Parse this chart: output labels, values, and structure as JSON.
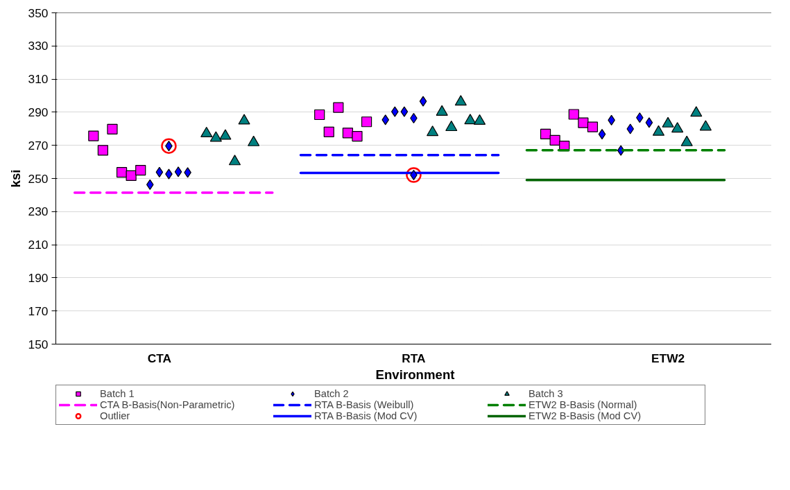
{
  "chart_data": {
    "type": "scatter",
    "xlabel": "Environment",
    "ylabel": "ksi",
    "categories": [
      null,
      null,
      null,
      null,
      null,
      null,
      null,
      null,
      null,
      "CTA",
      null,
      null,
      null,
      null,
      null,
      null,
      null,
      null,
      null,
      null,
      null,
      null,
      null,
      null,
      null,
      null,
      null,
      null,
      null,
      null,
      null,
      null,
      null,
      null,
      null,
      null,
      "RTA",
      null,
      null,
      null,
      null,
      null,
      null,
      null,
      null,
      null,
      null,
      null,
      null,
      null,
      null,
      null,
      null,
      null,
      null,
      null,
      null,
      null,
      null,
      null,
      null,
      null,
      null,
      "ETW2",
      null,
      null,
      null,
      null,
      null,
      null
    ],
    "ylim": [
      150,
      350
    ],
    "yticks": [
      150,
      170,
      190,
      210,
      230,
      250,
      270,
      290,
      310,
      330,
      350
    ],
    "grid": "y",
    "legend": "bottom",
    "series": [
      {
        "name": "Batch 1",
        "marker": "square",
        "color": "#ff00ff",
        "values": [
          null,
          null,
          275.7,
          267,
          279.8,
          253.7,
          251.7,
          255,
          null,
          null,
          null,
          null,
          null,
          null,
          null,
          null,
          null,
          null,
          null,
          null,
          null,
          null,
          null,
          null,
          null,
          null,
          288.5,
          278.1,
          292.8,
          277.5,
          275.5,
          284.2,
          null,
          null,
          null,
          null,
          null,
          null,
          null,
          null,
          null,
          null,
          null,
          null,
          null,
          null,
          null,
          null,
          null,
          null,
          276.8,
          273.1,
          269.6,
          288.7,
          283.6,
          281.1,
          null,
          null,
          null,
          null,
          null,
          null,
          null,
          null,
          null,
          null,
          null,
          null,
          null,
          null
        ]
      },
      {
        "name": "Batch 2",
        "marker": "diamond",
        "color": "#0000ff",
        "values": [
          null,
          null,
          null,
          null,
          null,
          null,
          null,
          null,
          246.3,
          253.8,
          252.7,
          254,
          253.6,
          null,
          null,
          null,
          null,
          null,
          null,
          null,
          null,
          null,
          null,
          null,
          null,
          null,
          null,
          null,
          null,
          null,
          null,
          null,
          null,
          285.4,
          290.3,
          290.3,
          286.4,
          296.6,
          null,
          null,
          null,
          null,
          null,
          null,
          null,
          null,
          null,
          null,
          null,
          null,
          null,
          null,
          null,
          null,
          null,
          null,
          276.7,
          285.2,
          266.9,
          279.9,
          286.7,
          283.7,
          null,
          null,
          null,
          null,
          null,
          null,
          null,
          null
        ]
      },
      {
        "name": "Batch 3",
        "marker": "triangle",
        "color": "#008080",
        "values": [
          null,
          null,
          null,
          null,
          null,
          null,
          null,
          null,
          null,
          null,
          null,
          null,
          null,
          null,
          277.1,
          274.4,
          275.6,
          260.2,
          284.8,
          271.7,
          null,
          null,
          null,
          null,
          null,
          null,
          null,
          null,
          null,
          null,
          null,
          null,
          null,
          null,
          null,
          null,
          null,
          null,
          277.8,
          290.1,
          280.8,
          296.2,
          284.9,
          284.6,
          null,
          null,
          null,
          null,
          null,
          null,
          null,
          null,
          null,
          null,
          null,
          null,
          null,
          null,
          null,
          null,
          null,
          null,
          278,
          283,
          279.9,
          271.7,
          289.5,
          281.1,
          null,
          null
        ]
      },
      {
        "name": "CTA B-Basis(Non-Parametric)",
        "type": "line",
        "line_style": "dashed",
        "color": "#ff00ff",
        "values": [
          241.4,
          241.4,
          241.4,
          241.4,
          241.4,
          241.4,
          241.4,
          241.4,
          241.4,
          241.4,
          241.4,
          241.4,
          241.4,
          241.4,
          241.4,
          241.4,
          241.4,
          241.4,
          241.4,
          241.4,
          241.4,
          241.4,
          null,
          null,
          null,
          null,
          null,
          null,
          null,
          null,
          null,
          null,
          null,
          null,
          null,
          null,
          null,
          null,
          null,
          null,
          null,
          null,
          null,
          null,
          null,
          null,
          null,
          null,
          null,
          null,
          null,
          null,
          null,
          null,
          null,
          null,
          null,
          null,
          null,
          null,
          null,
          null,
          null,
          null,
          null,
          null,
          null,
          null,
          null,
          null
        ]
      },
      {
        "name": "RTA B-Basis (Weibull)",
        "type": "line",
        "line_style": "dashed",
        "color": "#0000ff",
        "values": [
          null,
          null,
          null,
          null,
          null,
          null,
          null,
          null,
          null,
          null,
          null,
          null,
          null,
          null,
          null,
          null,
          null,
          null,
          null,
          null,
          null,
          null,
          null,
          null,
          264.1,
          264.1,
          264.1,
          264.1,
          264.1,
          264.1,
          264.1,
          264.1,
          264.1,
          264.1,
          264.1,
          264.1,
          264.1,
          264.1,
          264.1,
          264.1,
          264.1,
          264.1,
          264.1,
          264.1,
          264.1,
          264.1,
          null,
          null,
          null,
          null,
          null,
          null,
          null,
          null,
          null,
          null,
          null,
          null,
          null,
          null,
          null,
          null,
          null,
          null,
          null,
          null,
          null,
          null,
          null,
          null
        ]
      },
      {
        "name": "ETW2 B-Basis (Normal)",
        "type": "line",
        "line_style": "dashed",
        "color": "#008000",
        "values": [
          null,
          null,
          null,
          null,
          null,
          null,
          null,
          null,
          null,
          null,
          null,
          null,
          null,
          null,
          null,
          null,
          null,
          null,
          null,
          null,
          null,
          null,
          null,
          null,
          null,
          null,
          null,
          null,
          null,
          null,
          null,
          null,
          null,
          null,
          null,
          null,
          null,
          null,
          null,
          null,
          null,
          null,
          null,
          null,
          null,
          null,
          null,
          null,
          267.1,
          267.1,
          267.1,
          267.1,
          267.1,
          267.1,
          267.1,
          267.1,
          267.1,
          267.1,
          267.1,
          267.1,
          267.1,
          267.1,
          267.1,
          267.1,
          267.1,
          267.1,
          267.1,
          267.1,
          267.1,
          267.1
        ]
      },
      {
        "name": "Outlier",
        "marker": "circle",
        "color": "#ff0000",
        "values": [
          null,
          null,
          null,
          null,
          null,
          null,
          null,
          null,
          null,
          null,
          269.6,
          null,
          null,
          null,
          null,
          null,
          null,
          null,
          null,
          null,
          null,
          null,
          null,
          null,
          null,
          null,
          null,
          null,
          null,
          null,
          null,
          null,
          null,
          null,
          null,
          null,
          252.1,
          null,
          null,
          null,
          null,
          null,
          null,
          null,
          null,
          null,
          null,
          null,
          null,
          null,
          null,
          null,
          null,
          null,
          null,
          null,
          null,
          null,
          null,
          null,
          null,
          null,
          null,
          null,
          null,
          null,
          null,
          null,
          null,
          null
        ]
      },
      {
        "name": "RTA B-Basis (Mod CV)",
        "type": "line",
        "line_style": "solid",
        "color": "#0000ff",
        "values": [
          null,
          null,
          null,
          null,
          null,
          null,
          null,
          null,
          null,
          null,
          null,
          null,
          null,
          null,
          null,
          null,
          null,
          null,
          null,
          null,
          null,
          null,
          null,
          null,
          253.3,
          253.3,
          253.3,
          253.3,
          253.3,
          253.3,
          253.3,
          253.3,
          253.3,
          253.3,
          253.3,
          253.3,
          253.3,
          253.3,
          253.3,
          253.3,
          253.3,
          253.3,
          253.3,
          253.3,
          253.3,
          253.3,
          null,
          null,
          null,
          null,
          null,
          null,
          null,
          null,
          null,
          null,
          null,
          null,
          null,
          null,
          null,
          null,
          null,
          null,
          null,
          null,
          null,
          null,
          null,
          null
        ]
      },
      {
        "name": "ETW2 B-Basis (Mod CV)",
        "type": "line",
        "line_style": "solid",
        "color": "#006400",
        "values": [
          null,
          null,
          null,
          null,
          null,
          null,
          null,
          null,
          null,
          null,
          null,
          null,
          null,
          null,
          null,
          null,
          null,
          null,
          null,
          null,
          null,
          null,
          null,
          null,
          null,
          null,
          null,
          null,
          null,
          null,
          null,
          null,
          null,
          null,
          null,
          null,
          null,
          null,
          null,
          null,
          null,
          null,
          null,
          null,
          null,
          null,
          null,
          null,
          249.1,
          249.1,
          249.1,
          249.1,
          249.1,
          249.1,
          249.1,
          249.1,
          249.1,
          249.1,
          249.1,
          249.1,
          249.1,
          249.1,
          249.1,
          249.1,
          249.1,
          249.1,
          249.1,
          249.1,
          249.1,
          249.1
        ]
      },
      {
        "marker": "diamond",
        "color": "#0000ff",
        "values": [
          null,
          null,
          null,
          null,
          null,
          null,
          null,
          null,
          null,
          null,
          269.6,
          null,
          null,
          null,
          null,
          null,
          null,
          null,
          null,
          null,
          null,
          null,
          null,
          null,
          null,
          null,
          null,
          null,
          null,
          null,
          null,
          null,
          null,
          null,
          null,
          null,
          252.1,
          null,
          null,
          null,
          null,
          null,
          null,
          null,
          null,
          null,
          null,
          null,
          null,
          null,
          null,
          null,
          null,
          null,
          null,
          null,
          null,
          null,
          null,
          null,
          null,
          null,
          null,
          null,
          null,
          null,
          null,
          null,
          null,
          null
        ]
      }
    ]
  }
}
